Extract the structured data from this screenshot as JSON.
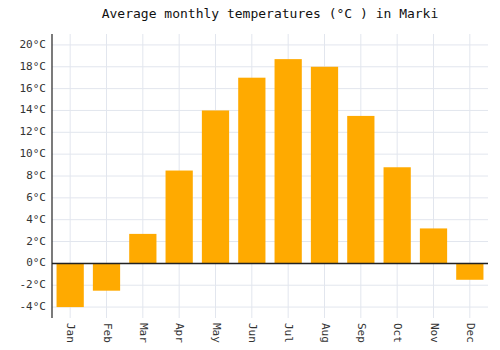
{
  "chart_data": {
    "type": "bar",
    "title": "Average monthly temperatures (°C ) in Marki",
    "categories": [
      "Jan",
      "Feb",
      "Mar",
      "Apr",
      "May",
      "Jun",
      "Jul",
      "Aug",
      "Sep",
      "Oct",
      "Nov",
      "Dec"
    ],
    "values": [
      -4.0,
      -2.5,
      2.7,
      8.5,
      14.0,
      17.0,
      18.7,
      18.0,
      13.5,
      8.8,
      3.2,
      -1.5
    ],
    "color": "#FFAA00",
    "ylim": [
      -5,
      21
    ],
    "yticks": [
      {
        "value": -4,
        "label": "-4°C"
      },
      {
        "value": -2,
        "label": "-2°C"
      },
      {
        "value": 0,
        "label": "0°C"
      },
      {
        "value": 2,
        "label": "2°C"
      },
      {
        "value": 4,
        "label": "4°C"
      },
      {
        "value": 6,
        "label": "6°C"
      },
      {
        "value": 8,
        "label": "8°C"
      },
      {
        "value": 10,
        "label": "10°C"
      },
      {
        "value": 12,
        "label": "12°C"
      },
      {
        "value": 14,
        "label": "14°C"
      },
      {
        "value": 16,
        "label": "16°C"
      },
      {
        "value": 18,
        "label": "18°C"
      },
      {
        "value": 20,
        "label": "20°C"
      }
    ],
    "grid": true
  }
}
